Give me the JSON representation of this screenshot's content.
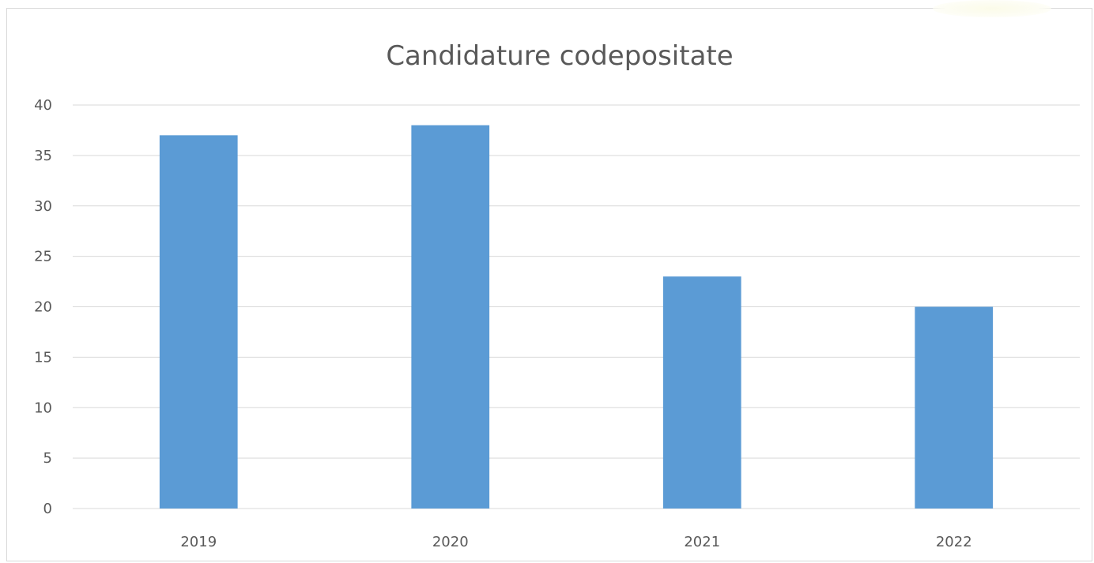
{
  "chart_data": {
    "type": "bar",
    "title": "Candidature codepositate",
    "xlabel": "",
    "ylabel": "",
    "categories": [
      "2019",
      "2020",
      "2021",
      "2022"
    ],
    "values": [
      37,
      38,
      23,
      20
    ],
    "ylim": [
      0,
      40
    ],
    "yticks": [
      "0",
      "5",
      "10",
      "15",
      "20",
      "25",
      "30",
      "35",
      "40"
    ],
    "grid": true,
    "legend": "none",
    "bar_color": "#5b9bd5",
    "grid_color": "#d9d9d9",
    "text_color": "#595959"
  }
}
